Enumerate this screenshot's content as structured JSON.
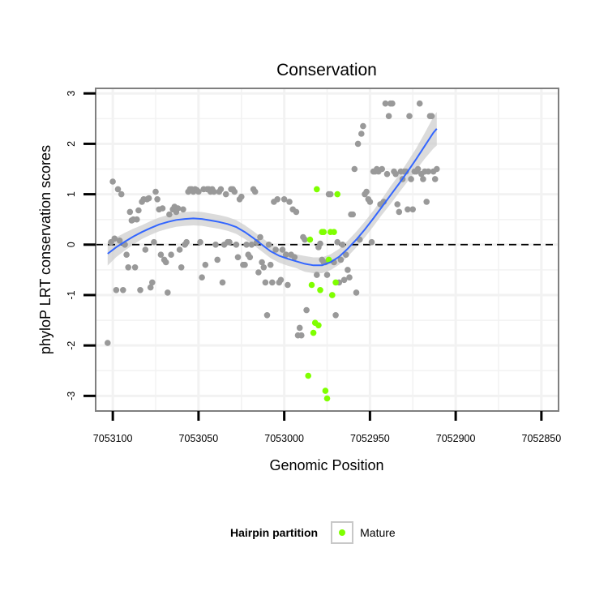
{
  "chart_data": {
    "type": "scatter",
    "title": "Conservation",
    "xlabel": "Genomic Position",
    "ylabel": "phyloP LRT conservation scores",
    "x_reversed": true,
    "xlim": [
      7053110,
      7052840
    ],
    "ylim": [
      -3.3,
      3.1
    ],
    "x_ticks": [
      7053100,
      7053050,
      7053000,
      7052950,
      7052900,
      7052850
    ],
    "x_tick_labels": [
      "7053100",
      "7053050",
      "7053000",
      "7052950",
      "7052900",
      "7052850"
    ],
    "y_ticks": [
      -3,
      -2,
      -1,
      0,
      1,
      2,
      3
    ],
    "y_tick_labels": [
      "-3",
      "-2",
      "-1",
      "0",
      "1",
      "2",
      "3"
    ],
    "grid": true,
    "reference_line": {
      "y": 0,
      "style": "dashed",
      "color": "#000000"
    },
    "legend": {
      "title": "Hairpin partition",
      "placement": "bottom",
      "entries": [
        {
          "label": "Mature",
          "color": "#7fff00"
        }
      ]
    },
    "colors": {
      "other": "#999999",
      "mature": "#7fff00",
      "smooth": "#3366ff",
      "band": "#cccccc",
      "panel_border": "#7f7f7f",
      "grid": "#f2f2f2"
    },
    "series": [
      {
        "name": "",
        "points": [
          [
            7053103,
            -1.95
          ],
          [
            7053101,
            0.05
          ],
          [
            7053100,
            1.25
          ],
          [
            7053099,
            0.12
          ],
          [
            7053098,
            -0.9
          ],
          [
            7053097,
            1.1
          ],
          [
            7053096,
            0.08
          ],
          [
            7053095,
            1.0
          ],
          [
            7053094,
            -0.9
          ],
          [
            7053093,
            0.0
          ],
          [
            7053092,
            -0.2
          ],
          [
            7053091,
            -0.45
          ],
          [
            7053090,
            0.65
          ],
          [
            7053089,
            0.48
          ],
          [
            7053088,
            0.5
          ],
          [
            7053087,
            -0.45
          ],
          [
            7053086,
            0.5
          ],
          [
            7053085,
            0.68
          ],
          [
            7053084,
            -0.9
          ],
          [
            7053083,
            0.85
          ],
          [
            7053082,
            0.9
          ],
          [
            7053081,
            -0.1
          ],
          [
            7053080,
            0.9
          ],
          [
            7053079,
            0.92
          ],
          [
            7053078,
            -0.85
          ],
          [
            7053077,
            -0.75
          ],
          [
            7053076,
            0.05
          ],
          [
            7053075,
            1.05
          ],
          [
            7053074,
            0.9
          ],
          [
            7053073,
            0.7
          ],
          [
            7053072,
            -0.2
          ],
          [
            7053071,
            0.72
          ],
          [
            7053070,
            -0.3
          ],
          [
            7053069,
            -0.35
          ],
          [
            7053068,
            -0.95
          ],
          [
            7053067,
            0.6
          ],
          [
            7053066,
            -0.2
          ],
          [
            7053065,
            0.7
          ],
          [
            7053064,
            0.75
          ],
          [
            7053063,
            0.65
          ],
          [
            7053062,
            0.72
          ],
          [
            7053061,
            -0.1
          ],
          [
            7053060,
            -0.45
          ],
          [
            7053059,
            0.7
          ],
          [
            7053058,
            0.0
          ],
          [
            7053057,
            0.05
          ],
          [
            7053056,
            1.05
          ],
          [
            7053055,
            1.1
          ],
          [
            7053054,
            1.1
          ],
          [
            7053053,
            1.05
          ],
          [
            7053052,
            1.1
          ],
          [
            7053051,
            1.08
          ],
          [
            7053050,
            1.05
          ],
          [
            7053049,
            0.05
          ],
          [
            7053048,
            -0.65
          ],
          [
            7053047,
            1.1
          ],
          [
            7053046,
            -0.4
          ],
          [
            7053045,
            1.1
          ],
          [
            7053044,
            1.1
          ],
          [
            7053043,
            1.05
          ],
          [
            7053042,
            1.1
          ],
          [
            7053041,
            1.05
          ],
          [
            7053040,
            0.0
          ],
          [
            7053039,
            -0.3
          ],
          [
            7053038,
            1.05
          ],
          [
            7053037,
            1.1
          ],
          [
            7053036,
            -0.75
          ],
          [
            7053035,
            0.0
          ],
          [
            7053034,
            1.0
          ],
          [
            7053033,
            0.05
          ],
          [
            7053032,
            0.05
          ],
          [
            7053031,
            1.1
          ],
          [
            7053030,
            1.1
          ],
          [
            7053029,
            1.05
          ],
          [
            7053028,
            0.0
          ],
          [
            7053027,
            -0.25
          ],
          [
            7053026,
            0.9
          ],
          [
            7053025,
            0.95
          ],
          [
            7053024,
            -0.4
          ],
          [
            7053023,
            -0.4
          ],
          [
            7053022,
            0.0
          ],
          [
            7053021,
            -0.2
          ],
          [
            7053020,
            -0.25
          ],
          [
            7053019,
            0.0
          ],
          [
            7053018,
            1.1
          ],
          [
            7053017,
            1.05
          ],
          [
            7053016,
            0.05
          ],
          [
            7053015,
            -0.55
          ],
          [
            7053014,
            0.15
          ],
          [
            7053013,
            -0.35
          ],
          [
            7053012,
            -0.45
          ],
          [
            7053011,
            -0.75
          ],
          [
            7053010,
            -1.4
          ],
          [
            7053009,
            0.0
          ],
          [
            7053008,
            -0.4
          ],
          [
            7053007,
            -0.75
          ],
          [
            7053006,
            0.85
          ],
          [
            7053005,
            -0.1
          ],
          [
            7053004,
            0.9
          ],
          [
            7053003,
            -0.75
          ],
          [
            7053002,
            -0.7
          ],
          [
            7053001,
            -0.1
          ],
          [
            7053000,
            0.9
          ],
          [
            7052999,
            -0.2
          ],
          [
            7052998,
            -0.8
          ],
          [
            7052997,
            0.85
          ],
          [
            7052996,
            -0.2
          ],
          [
            7052995,
            0.7
          ],
          [
            7052994,
            -0.25
          ],
          [
            7052993,
            0.65
          ],
          [
            7052992,
            -1.8
          ],
          [
            7052991,
            -1.65
          ],
          [
            7052990,
            -1.8
          ],
          [
            7052989,
            0.15
          ],
          [
            7052988,
            0.1
          ],
          [
            7052987,
            -1.3
          ],
          [
            7052981,
            -0.6
          ],
          [
            7052980,
            -0.05
          ],
          [
            7052979,
            0.02
          ],
          [
            7052978,
            -0.3
          ],
          [
            7052977,
            -0.35
          ],
          [
            7052976,
            -0.35
          ],
          [
            7052975,
            -0.6
          ],
          [
            7052974,
            1.0
          ],
          [
            7052973,
            1.0
          ],
          [
            7052972,
            -1.0
          ],
          [
            7052971,
            -0.35
          ],
          [
            7052970,
            -1.4
          ],
          [
            7052969,
            0.05
          ],
          [
            7052968,
            -0.75
          ],
          [
            7052967,
            -0.3
          ],
          [
            7052966,
            0.0
          ],
          [
            7052965,
            -0.7
          ],
          [
            7052964,
            -0.2
          ],
          [
            7052963,
            -0.5
          ],
          [
            7052962,
            -0.65
          ],
          [
            7052961,
            0.6
          ],
          [
            7052960,
            0.6
          ],
          [
            7052959,
            1.5
          ],
          [
            7052958,
            -0.95
          ],
          [
            7052957,
            2.0
          ],
          [
            7052956,
            0.1
          ],
          [
            7052955,
            2.2
          ],
          [
            7052954,
            2.35
          ],
          [
            7052953,
            1.0
          ],
          [
            7052952,
            1.05
          ],
          [
            7052951,
            0.9
          ],
          [
            7052950,
            0.85
          ],
          [
            7052949,
            0.05
          ],
          [
            7052948,
            1.45
          ],
          [
            7052947,
            1.45
          ],
          [
            7052946,
            1.5
          ],
          [
            7052945,
            1.45
          ],
          [
            7052944,
            0.8
          ],
          [
            7052943,
            1.5
          ],
          [
            7052942,
            0.85
          ],
          [
            7052941,
            2.8
          ],
          [
            7052940,
            1.4
          ],
          [
            7052939,
            2.55
          ],
          [
            7052938,
            2.8
          ],
          [
            7052937,
            2.8
          ],
          [
            7052936,
            1.45
          ],
          [
            7052935,
            1.4
          ],
          [
            7052934,
            0.8
          ],
          [
            7052933,
            0.65
          ],
          [
            7052932,
            1.45
          ],
          [
            7052931,
            1.3
          ],
          [
            7052930,
            1.45
          ],
          [
            7052929,
            1.45
          ],
          [
            7052928,
            0.7
          ],
          [
            7052927,
            2.55
          ],
          [
            7052926,
            1.3
          ],
          [
            7052925,
            0.7
          ],
          [
            7052924,
            1.45
          ],
          [
            7052923,
            1.45
          ],
          [
            7052922,
            1.5
          ],
          [
            7052921,
            2.8
          ],
          [
            7052920,
            1.4
          ],
          [
            7052919,
            1.3
          ],
          [
            7052918,
            1.45
          ],
          [
            7052917,
            0.85
          ],
          [
            7052916,
            1.45
          ],
          [
            7052915,
            2.55
          ],
          [
            7052914,
            2.55
          ],
          [
            7052913,
            1.45
          ],
          [
            7052912,
            1.3
          ],
          [
            7052911,
            1.5
          ]
        ]
      },
      {
        "name": "Mature",
        "points": [
          [
            7052986,
            -2.6
          ],
          [
            7052985,
            0.1
          ],
          [
            7052984,
            -0.8
          ],
          [
            7052983,
            -1.75
          ],
          [
            7052982,
            -1.55
          ],
          [
            7052981,
            1.1
          ],
          [
            7052980,
            -1.6
          ],
          [
            7052979,
            -0.9
          ],
          [
            7052978,
            0.25
          ],
          [
            7052977,
            0.25
          ],
          [
            7052976,
            -2.9
          ],
          [
            7052975,
            -3.05
          ],
          [
            7052974,
            -0.3
          ],
          [
            7052973,
            0.25
          ],
          [
            7052972,
            -1.0
          ],
          [
            7052971,
            0.25
          ],
          [
            7052970,
            -0.75
          ],
          [
            7052969,
            1.0
          ]
        ]
      }
    ],
    "smooth": {
      "x": [
        7053103,
        7053098,
        7053093,
        7053088,
        7053083,
        7053078,
        7053073,
        7053068,
        7053063,
        7053058,
        7053053,
        7053048,
        7053043,
        7053038,
        7053033,
        7053028,
        7053023,
        7053018,
        7053013,
        7053008,
        7053003,
        7052998,
        7052993,
        7052988,
        7052983,
        7052978,
        7052973,
        7052968,
        7052963,
        7052958,
        7052953,
        7052948,
        7052943,
        7052938,
        7052933,
        7052928,
        7052923,
        7052918,
        7052913,
        7052911
      ],
      "y": [
        -0.18,
        -0.05,
        0.06,
        0.16,
        0.25,
        0.33,
        0.4,
        0.45,
        0.49,
        0.51,
        0.52,
        0.51,
        0.48,
        0.45,
        0.41,
        0.35,
        0.25,
        0.13,
        0.0,
        -0.13,
        -0.22,
        -0.28,
        -0.33,
        -0.38,
        -0.41,
        -0.41,
        -0.35,
        -0.24,
        -0.08,
        0.1,
        0.3,
        0.52,
        0.75,
        0.98,
        1.21,
        1.45,
        1.7,
        1.96,
        2.22,
        2.3
      ],
      "se": [
        0.12,
        0.1,
        0.09,
        0.08,
        0.07,
        0.07,
        0.07,
        0.07,
        0.07,
        0.07,
        0.07,
        0.07,
        0.07,
        0.07,
        0.07,
        0.07,
        0.07,
        0.07,
        0.07,
        0.07,
        0.07,
        0.07,
        0.07,
        0.08,
        0.08,
        0.08,
        0.08,
        0.08,
        0.08,
        0.08,
        0.08,
        0.08,
        0.08,
        0.09,
        0.09,
        0.1,
        0.11,
        0.13,
        0.16,
        0.17
      ]
    }
  }
}
